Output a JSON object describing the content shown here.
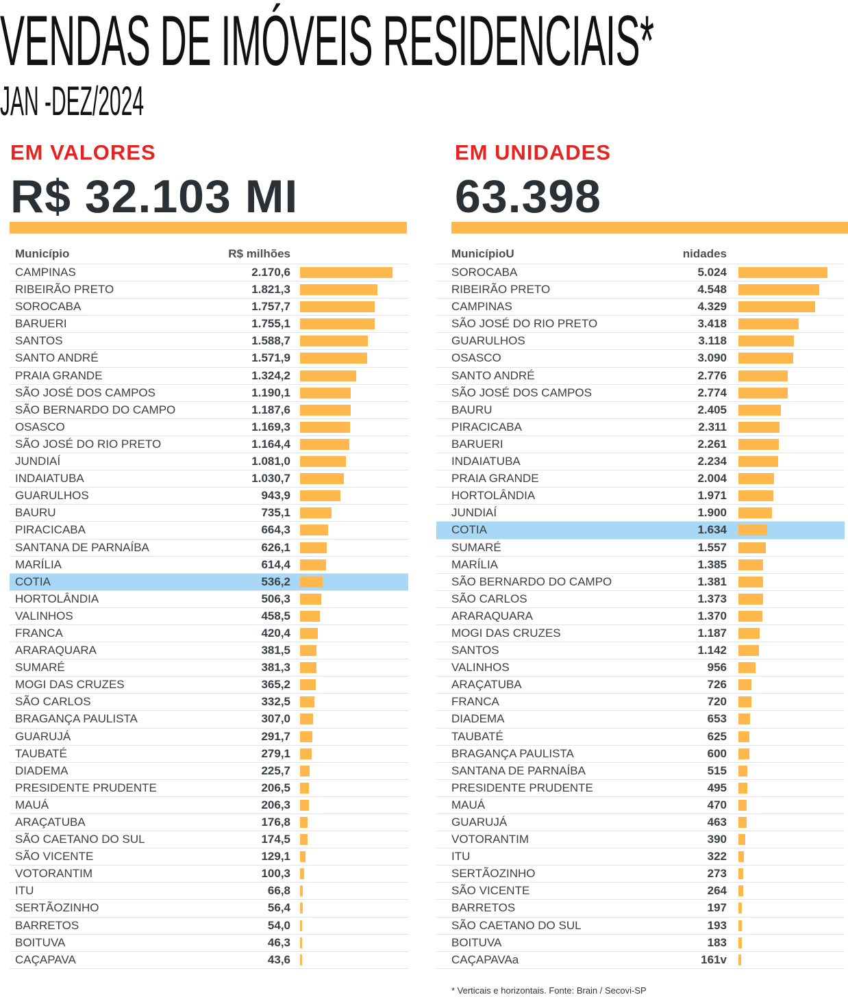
{
  "title": "VENDAS DE IMÓVEIS RESIDENCIAIS*",
  "subtitle": "JAN -DEZ/2024",
  "footer": "* Verticais e horizontais.   Fonte: Brain /  Secovi-SP",
  "colors": {
    "bar": "#ffb84d",
    "highlight": "#a8d8f5",
    "section": "#e52421"
  },
  "chart_data": [
    {
      "type": "bar",
      "section": "EM VALORES",
      "total": "R$ 32.103 MI",
      "col_name": "Município",
      "col_value": "R$ milhões",
      "highlight": "COTIA",
      "rows": [
        [
          "CAMPINAS",
          "2.170,6",
          2170.6
        ],
        [
          "RIBEIRÃO PRETO",
          "1.821,3",
          1821.3
        ],
        [
          "SOROCABA",
          "1.757,7",
          1757.7
        ],
        [
          "BARUERI",
          "1.755,1",
          1755.1
        ],
        [
          "SANTOS",
          "1.588,7",
          1588.7
        ],
        [
          "SANTO ANDRÉ",
          "1.571,9",
          1571.9
        ],
        [
          "PRAIA GRANDE",
          "1.324,2",
          1324.2
        ],
        [
          "SÃO JOSÉ DOS CAMPOS",
          "1.190,1",
          1190.1
        ],
        [
          "SÃO BERNARDO DO CAMPO",
          "1.187,6",
          1187.6
        ],
        [
          "OSASCO",
          "1.169,3",
          1169.3
        ],
        [
          "SÃO JOSÉ DO RIO PRETO",
          "1.164,4",
          1164.4
        ],
        [
          "JUNDIAÍ",
          "1.081,0",
          1081.0
        ],
        [
          "INDAIATUBA",
          "1.030,7",
          1030.7
        ],
        [
          "GUARULHOS",
          "943,9",
          943.9
        ],
        [
          "BAURU",
          "735,1",
          735.1
        ],
        [
          "PIRACICABA",
          "664,3",
          664.3
        ],
        [
          "SANTANA DE PARNAÍBA",
          "626,1",
          626.1
        ],
        [
          "MARÍLIA",
          "614,4",
          614.4
        ],
        [
          "COTIA",
          "536,2",
          536.2
        ],
        [
          "HORTOLÂNDIA",
          "506,3",
          506.3
        ],
        [
          "VALINHOS",
          "458,5",
          458.5
        ],
        [
          "FRANCA",
          "420,4",
          420.4
        ],
        [
          "ARARAQUARA",
          "381,5",
          381.5
        ],
        [
          "SUMARÉ",
          "381,3",
          381.3
        ],
        [
          "MOGI DAS CRUZES",
          "365,2",
          365.2
        ],
        [
          "SÃO CARLOS",
          "332,5",
          332.5
        ],
        [
          "BRAGANÇA PAULISTA",
          "307,0",
          307.0
        ],
        [
          "GUARUJÁ",
          "291,7",
          291.7
        ],
        [
          "TAUBATÉ",
          "279,1",
          279.1
        ],
        [
          "DIADEMA",
          "225,7",
          225.7
        ],
        [
          "PRESIDENTE PRUDENTE",
          "206,5",
          206.5
        ],
        [
          "MAUÁ",
          "206,3",
          206.3
        ],
        [
          "ARAÇATUBA",
          "176,8",
          176.8
        ],
        [
          "SÃO CAETANO DO SUL",
          "174,5",
          174.5
        ],
        [
          "SÃO VICENTE",
          "129,1",
          129.1
        ],
        [
          "VOTORANTIM",
          "100,3",
          100.3
        ],
        [
          "ITU",
          "66,8",
          66.8
        ],
        [
          "SERTÃOZINHO",
          "56,4",
          56.4
        ],
        [
          "BARRETOS",
          "54,0",
          54.0
        ],
        [
          "BOITUVA",
          "46,3",
          46.3
        ],
        [
          "CAÇAPAVA",
          "43,6",
          43.6
        ]
      ]
    },
    {
      "type": "bar",
      "section": "EM UNIDADES",
      "total": "63.398",
      "col_name": "MunicípioU",
      "col_value": "nidades",
      "highlight": "COTIA",
      "rows": [
        [
          "SOROCABA",
          "5.024",
          5024
        ],
        [
          "RIBEIRÃO PRETO",
          "4.548",
          4548
        ],
        [
          "CAMPINAS",
          "4.329",
          4329
        ],
        [
          "SÃO JOSÉ DO RIO PRETO",
          "3.418",
          3418
        ],
        [
          "GUARULHOS",
          "3.118",
          3118
        ],
        [
          "OSASCO",
          "3.090",
          3090
        ],
        [
          "SANTO ANDRÉ",
          "2.776",
          2776
        ],
        [
          "SÃO JOSÉ DOS CAMPOS",
          "2.774",
          2774
        ],
        [
          "BAURU",
          "2.405",
          2405
        ],
        [
          "PIRACICABA",
          "2.311",
          2311
        ],
        [
          "BARUERI",
          "2.261",
          2261
        ],
        [
          "INDAIATUBA",
          "2.234",
          2234
        ],
        [
          "PRAIA GRANDE",
          "2.004",
          2004
        ],
        [
          "HORTOLÂNDIA",
          "1.971",
          1971
        ],
        [
          "JUNDIAÍ",
          "1.900",
          1900
        ],
        [
          "COTIA",
          "1.634",
          1634
        ],
        [
          "SUMARÉ",
          "1.557",
          1557
        ],
        [
          "MARÍLIA",
          "1.385",
          1385
        ],
        [
          "SÃO BERNARDO DO CAMPO",
          "1.381",
          1381
        ],
        [
          "SÃO CARLOS",
          "1.373",
          1373
        ],
        [
          "ARARAQUARA",
          "1.370",
          1370
        ],
        [
          "MOGI DAS CRUZES",
          "1.187",
          1187
        ],
        [
          "SANTOS",
          "1.142",
          1142
        ],
        [
          "VALINHOS",
          "956",
          956
        ],
        [
          "ARAÇATUBA",
          "726",
          726
        ],
        [
          "FRANCA",
          "720",
          720
        ],
        [
          "DIADEMA",
          "653",
          653
        ],
        [
          "TAUBATÉ",
          "625",
          625
        ],
        [
          "BRAGANÇA PAULISTA",
          "600",
          600
        ],
        [
          "SANTANA DE PARNAÍBA",
          "515",
          515
        ],
        [
          "PRESIDENTE PRUDENTE",
          "495",
          495
        ],
        [
          "MAUÁ",
          "470",
          470
        ],
        [
          "GUARUJÁ",
          "463",
          463
        ],
        [
          "VOTORANTIM",
          "390",
          390
        ],
        [
          "ITU",
          "322",
          322
        ],
        [
          "SERTÃOZINHO",
          "273",
          273
        ],
        [
          "SÃO VICENTE",
          "264",
          264
        ],
        [
          "BARRETOS",
          "197",
          197
        ],
        [
          "SÃO CAETANO DO SUL",
          "193",
          193
        ],
        [
          "BOITUVA",
          "183",
          183
        ],
        [
          "CAÇAPAVAa",
          "161v",
          161
        ]
      ]
    }
  ]
}
